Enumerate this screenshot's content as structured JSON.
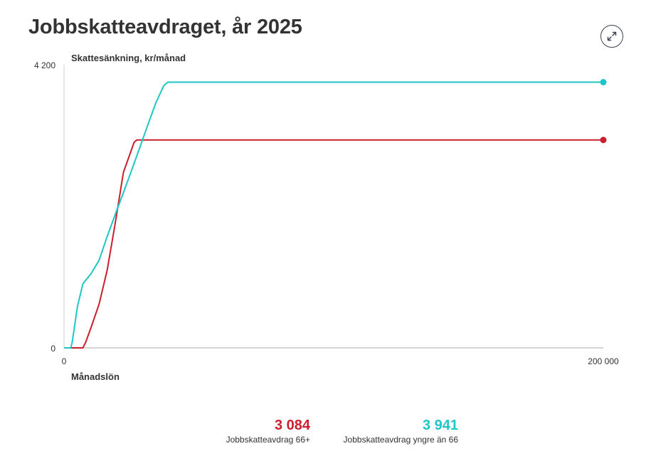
{
  "title": "Jobbskatteavdraget, år 2025",
  "expand_icon": "expand-arrows-icon",
  "chart_data": {
    "type": "line",
    "ylabel": "Skattesänkning, kr/månad",
    "xlabel": "Månadslön",
    "xlim": [
      0,
      200000
    ],
    "ylim": [
      0,
      4200
    ],
    "x_ticks": [
      "0",
      "200 000"
    ],
    "y_ticks": [
      "0",
      "4 200"
    ],
    "grid": false,
    "series": [
      {
        "name": "Jobbskatteavdrag 66+",
        "color": "#cc1f2d",
        "value_label": "3 084",
        "points": [
          [
            0,
            0
          ],
          [
            7000,
            0
          ],
          [
            8000,
            80
          ],
          [
            10000,
            300
          ],
          [
            13000,
            650
          ],
          [
            16000,
            1150
          ],
          [
            19000,
            1850
          ],
          [
            22000,
            2600
          ],
          [
            26000,
            3050
          ],
          [
            27000,
            3084
          ],
          [
            200000,
            3084
          ]
        ]
      },
      {
        "name": "Jobbskatteavdrag yngre än 66",
        "color": "#1fc6c6",
        "value_label": "3 941",
        "points": [
          [
            0,
            0
          ],
          [
            2500,
            0
          ],
          [
            3000,
            80
          ],
          [
            5000,
            620
          ],
          [
            7000,
            950
          ],
          [
            10000,
            1100
          ],
          [
            13000,
            1300
          ],
          [
            16000,
            1650
          ],
          [
            19000,
            1980
          ],
          [
            22000,
            2300
          ],
          [
            25000,
            2630
          ],
          [
            28000,
            2960
          ],
          [
            31000,
            3300
          ],
          [
            34000,
            3630
          ],
          [
            37000,
            3890
          ],
          [
            38500,
            3941
          ],
          [
            200000,
            3941
          ]
        ]
      }
    ],
    "legend": [
      {
        "value": "3 084",
        "label": "Jobbskatteavdrag 66+"
      },
      {
        "value": "3 941",
        "label": "Jobbskatteavdrag yngre än 66"
      }
    ]
  }
}
